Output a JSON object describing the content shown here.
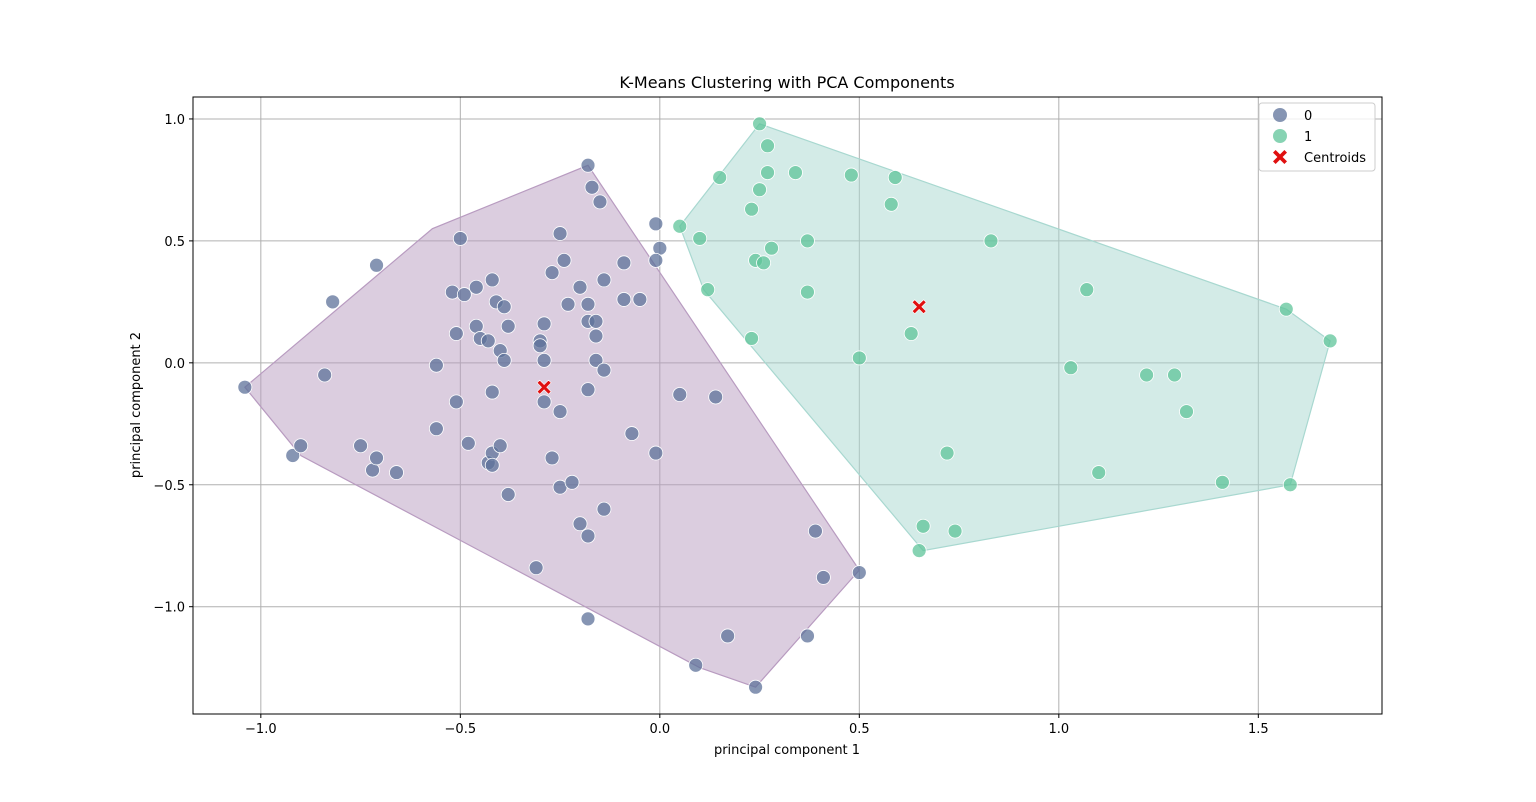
{
  "chart_data": {
    "type": "scatter",
    "title": "K-Means Clustering with PCA Components",
    "xlabel": "principal component 1",
    "ylabel": "principal component 2",
    "xlim": [
      -1.17,
      1.81
    ],
    "ylim": [
      -1.44,
      1.09
    ],
    "xticks": [
      -1.0,
      -0.5,
      0.0,
      0.5,
      1.0,
      1.5
    ],
    "yticks": [
      1.0,
      0.5,
      0.0,
      -0.5,
      -1.0
    ],
    "xtick_labels": [
      "−1.0",
      "−0.5",
      "0.0",
      "0.5",
      "1.0",
      "1.5"
    ],
    "ytick_labels": [
      "1.0",
      "0.5",
      "0.0",
      "−0.5",
      "−1.0"
    ],
    "grid": true,
    "legend_position": "top-right",
    "series": [
      {
        "name": "0",
        "color": "#5d7299",
        "hull_color": "#b89bc0",
        "hull": [
          [
            -1.04,
            -0.1
          ],
          [
            -0.9,
            -0.38
          ],
          [
            0.1,
            -1.25
          ],
          [
            0.24,
            -1.33
          ],
          [
            0.5,
            -0.85
          ],
          [
            -0.18,
            0.81
          ],
          [
            -0.57,
            0.55
          ]
        ],
        "points": [
          [
            -1.04,
            -0.1
          ],
          [
            -0.92,
            -0.38
          ],
          [
            -0.9,
            -0.34
          ],
          [
            -0.82,
            0.25
          ],
          [
            -0.84,
            -0.05
          ],
          [
            -0.75,
            -0.34
          ],
          [
            -0.71,
            0.4
          ],
          [
            -0.72,
            -0.44
          ],
          [
            -0.71,
            -0.39
          ],
          [
            -0.66,
            -0.45
          ],
          [
            -0.56,
            -0.01
          ],
          [
            -0.56,
            -0.27
          ],
          [
            -0.52,
            0.29
          ],
          [
            -0.51,
            0.12
          ],
          [
            -0.51,
            -0.16
          ],
          [
            -0.5,
            0.51
          ],
          [
            -0.49,
            0.28
          ],
          [
            -0.48,
            -0.33
          ],
          [
            -0.46,
            0.31
          ],
          [
            -0.46,
            0.15
          ],
          [
            -0.45,
            0.1
          ],
          [
            -0.43,
            0.09
          ],
          [
            -0.42,
            0.34
          ],
          [
            -0.41,
            0.25
          ],
          [
            -0.4,
            0.05
          ],
          [
            -0.39,
            0.23
          ],
          [
            -0.38,
            0.15
          ],
          [
            -0.39,
            0.01
          ],
          [
            -0.42,
            -0.12
          ],
          [
            -0.43,
            -0.41
          ],
          [
            -0.42,
            -0.37
          ],
          [
            -0.42,
            -0.42
          ],
          [
            -0.4,
            -0.34
          ],
          [
            -0.38,
            -0.54
          ],
          [
            -0.3,
            0.09
          ],
          [
            -0.3,
            0.07
          ],
          [
            -0.29,
            0.16
          ],
          [
            -0.29,
            0.01
          ],
          [
            -0.29,
            -0.16
          ],
          [
            -0.27,
            0.37
          ],
          [
            -0.25,
            0.53
          ],
          [
            -0.24,
            0.42
          ],
          [
            -0.23,
            0.24
          ],
          [
            -0.25,
            -0.2
          ],
          [
            -0.27,
            -0.39
          ],
          [
            -0.25,
            -0.51
          ],
          [
            -0.22,
            -0.49
          ],
          [
            -0.2,
            0.31
          ],
          [
            -0.18,
            0.24
          ],
          [
            -0.18,
            0.17
          ],
          [
            -0.16,
            0.17
          ],
          [
            -0.16,
            0.11
          ],
          [
            -0.16,
            0.01
          ],
          [
            -0.14,
            -0.03
          ],
          [
            -0.18,
            -0.11
          ],
          [
            -0.18,
            0.81
          ],
          [
            -0.17,
            0.72
          ],
          [
            -0.15,
            0.66
          ],
          [
            -0.14,
            0.34
          ],
          [
            -0.09,
            0.41
          ],
          [
            -0.09,
            0.26
          ],
          [
            -0.05,
            0.26
          ],
          [
            -0.01,
            0.57
          ],
          [
            0.0,
            0.47
          ],
          [
            -0.01,
            0.42
          ],
          [
            -0.07,
            -0.29
          ],
          [
            -0.01,
            -0.37
          ],
          [
            0.05,
            -0.13
          ],
          [
            0.14,
            -0.14
          ],
          [
            -0.2,
            -0.66
          ],
          [
            -0.18,
            -0.71
          ],
          [
            -0.14,
            -0.6
          ],
          [
            -0.31,
            -0.84
          ],
          [
            -0.18,
            -1.05
          ],
          [
            0.09,
            -1.24
          ],
          [
            0.17,
            -1.12
          ],
          [
            0.24,
            -1.33
          ],
          [
            0.37,
            -1.12
          ],
          [
            0.39,
            -0.69
          ],
          [
            0.41,
            -0.88
          ],
          [
            0.5,
            -0.86
          ]
        ]
      },
      {
        "name": "1",
        "color": "#5fc49a",
        "hull_color": "#a8d8d0",
        "hull": [
          [
            0.05,
            0.56
          ],
          [
            0.25,
            0.98
          ],
          [
            1.57,
            0.22
          ],
          [
            1.68,
            0.09
          ],
          [
            1.58,
            -0.5
          ],
          [
            0.66,
            -0.77
          ],
          [
            0.11,
            0.3
          ]
        ],
        "points": [
          [
            0.05,
            0.56
          ],
          [
            0.1,
            0.51
          ],
          [
            0.12,
            0.3
          ],
          [
            0.15,
            0.76
          ],
          [
            0.25,
            0.98
          ],
          [
            0.27,
            0.89
          ],
          [
            0.27,
            0.78
          ],
          [
            0.25,
            0.71
          ],
          [
            0.23,
            0.63
          ],
          [
            0.34,
            0.78
          ],
          [
            0.48,
            0.77
          ],
          [
            0.59,
            0.76
          ],
          [
            0.58,
            0.65
          ],
          [
            0.37,
            0.5
          ],
          [
            0.28,
            0.47
          ],
          [
            0.24,
            0.42
          ],
          [
            0.26,
            0.41
          ],
          [
            0.37,
            0.29
          ],
          [
            0.23,
            0.1
          ],
          [
            0.5,
            0.02
          ],
          [
            0.63,
            0.12
          ],
          [
            0.83,
            0.5
          ],
          [
            1.07,
            0.3
          ],
          [
            1.03,
            -0.02
          ],
          [
            1.22,
            -0.05
          ],
          [
            1.29,
            -0.05
          ],
          [
            1.32,
            -0.2
          ],
          [
            1.1,
            -0.45
          ],
          [
            1.41,
            -0.49
          ],
          [
            1.57,
            0.22
          ],
          [
            1.68,
            0.09
          ],
          [
            1.58,
            -0.5
          ],
          [
            0.72,
            -0.37
          ],
          [
            0.66,
            -0.67
          ],
          [
            0.74,
            -0.69
          ],
          [
            0.65,
            -0.77
          ]
        ]
      }
    ],
    "centroids": {
      "name": "Centroids",
      "color": "#e01010",
      "points": [
        [
          -0.29,
          -0.1
        ],
        [
          0.65,
          0.23
        ]
      ]
    }
  }
}
